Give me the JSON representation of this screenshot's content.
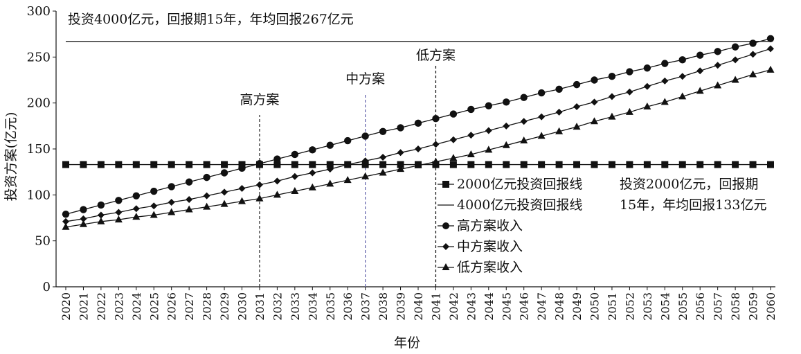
{
  "chart_data": {
    "type": "line",
    "xlabel": "年份",
    "ylabel": "投资方案(亿元)",
    "ylim": [
      0,
      300
    ],
    "yticks": [
      0,
      50,
      100,
      150,
      200,
      250,
      300
    ],
    "x": [
      2020,
      2021,
      2022,
      2023,
      2024,
      2025,
      2026,
      2027,
      2028,
      2029,
      2030,
      2031,
      2032,
      2033,
      2034,
      2035,
      2036,
      2037,
      2038,
      2039,
      2040,
      2041,
      2042,
      2043,
      2044,
      2045,
      2046,
      2047,
      2048,
      2049,
      2050,
      2051,
      2052,
      2053,
      2054,
      2055,
      2056,
      2057,
      2058,
      2059,
      2060
    ],
    "grid": false,
    "legend_position": "center-right",
    "series": [
      {
        "name": "2000亿元投资回报线",
        "marker": "square",
        "values": [
          133,
          133,
          133,
          133,
          133,
          133,
          133,
          133,
          133,
          133,
          133,
          133,
          133,
          133,
          133,
          133,
          133,
          133,
          133,
          133,
          133,
          133,
          133,
          133,
          133,
          133,
          133,
          133,
          133,
          133,
          133,
          133,
          133,
          133,
          133,
          133,
          133,
          133,
          133,
          133,
          133
        ]
      },
      {
        "name": "4000亿元投资回报线",
        "marker": "none",
        "values": [
          267,
          267,
          267,
          267,
          267,
          267,
          267,
          267,
          267,
          267,
          267,
          267,
          267,
          267,
          267,
          267,
          267,
          267,
          267,
          267,
          267,
          267,
          267,
          267,
          267,
          267,
          267,
          267,
          267,
          267,
          267,
          267,
          267,
          267,
          267,
          267,
          267,
          267,
          267,
          267,
          267
        ]
      },
      {
        "name": "高方案收入",
        "marker": "circle",
        "values": [
          79,
          84,
          89,
          94,
          99,
          104,
          109,
          114,
          119,
          124,
          129,
          134,
          139,
          144,
          149,
          154,
          159,
          164,
          169,
          173,
          178,
          183,
          188,
          193,
          197,
          201,
          206,
          211,
          215,
          220,
          225,
          229,
          234,
          238,
          243,
          247,
          252,
          256,
          261,
          265,
          270
        ]
      },
      {
        "name": "中方案收入",
        "marker": "diamond",
        "values": [
          71,
          74,
          78,
          81,
          85,
          88,
          92,
          95,
          99,
          103,
          107,
          111,
          115,
          120,
          124,
          128,
          133,
          137,
          141,
          146,
          150,
          155,
          160,
          165,
          170,
          175,
          180,
          185,
          190,
          196,
          201,
          207,
          212,
          218,
          224,
          229,
          235,
          241,
          247,
          253,
          259
        ]
      },
      {
        "name": "低方案收入",
        "marker": "triangle",
        "values": [
          65,
          68,
          71,
          73,
          76,
          78,
          81,
          84,
          87,
          90,
          93,
          96,
          100,
          104,
          108,
          112,
          116,
          120,
          124,
          128,
          132,
          136,
          140,
          144,
          149,
          154,
          159,
          164,
          169,
          174,
          180,
          185,
          190,
          196,
          201,
          207,
          213,
          219,
          225,
          231,
          236
        ]
      }
    ],
    "vlines": [
      {
        "x": 2031,
        "label": "高方案",
        "color": "#333333"
      },
      {
        "x": 2037,
        "label": "中方案",
        "color": "#6a6ab0"
      },
      {
        "x": 2041,
        "label": "低方案",
        "color": "#111111"
      }
    ],
    "annotations": {
      "top": "投资4000亿元，回报期15年，年均回报267亿元",
      "right_line1": "投资2000亿元，回报期",
      "right_line2": "15年，年均回报133亿元"
    }
  }
}
